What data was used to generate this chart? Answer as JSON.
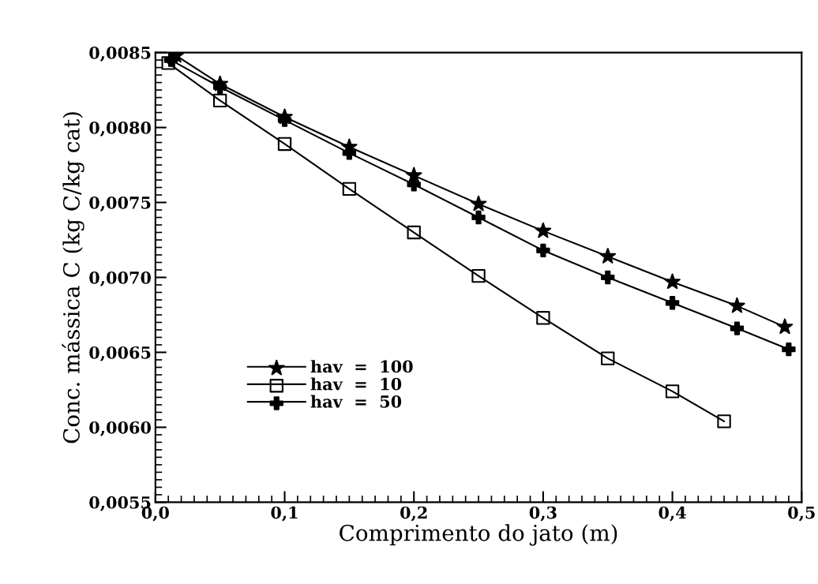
{
  "chart_data": {
    "type": "line",
    "xlabel": "Comprimento do jato (m)",
    "ylabel": "Conc. mássica C (kg C/kg cat)",
    "xlim": [
      0,
      0.5
    ],
    "ylim": [
      0.0055,
      0.0085
    ],
    "xticks": [
      {
        "value": 0,
        "label": "0,0"
      },
      {
        "value": 0.1,
        "label": "0,1"
      },
      {
        "value": 0.2,
        "label": "0,2"
      },
      {
        "value": 0.3,
        "label": "0,3"
      },
      {
        "value": 0.4,
        "label": "0,4"
      },
      {
        "value": 0.5,
        "label": "0,5"
      }
    ],
    "yticks": [
      {
        "value": 0.0055,
        "label": "0,0055"
      },
      {
        "value": 0.006,
        "label": "0,0060"
      },
      {
        "value": 0.0065,
        "label": "0,0065"
      },
      {
        "value": 0.007,
        "label": "0,0070"
      },
      {
        "value": 0.0075,
        "label": "0,0075"
      },
      {
        "value": 0.008,
        "label": "0,0080"
      },
      {
        "value": 0.0085,
        "label": "0,0085"
      }
    ],
    "legend": "bottom left",
    "grid": false,
    "line_style": "solid",
    "series": [
      {
        "name": "hav  =  100",
        "color": "#000000",
        "marker": "star",
        "x": [
          0.016,
          0.05,
          0.1,
          0.15,
          0.2,
          0.25,
          0.3,
          0.35,
          0.4,
          0.45,
          0.487
        ],
        "values": [
          0.00848,
          0.00829,
          0.00807,
          0.00787,
          0.00768,
          0.00749,
          0.00731,
          0.00714,
          0.00697,
          0.00681,
          0.00667
        ]
      },
      {
        "name": "hav  =  10",
        "color": "#000000",
        "marker": "square",
        "x": [
          0.01,
          0.05,
          0.1,
          0.15,
          0.2,
          0.25,
          0.3,
          0.35,
          0.4,
          0.44
        ],
        "values": [
          0.00843,
          0.00818,
          0.00789,
          0.00759,
          0.0073,
          0.00701,
          0.00673,
          0.00646,
          0.00624,
          0.00604
        ]
      },
      {
        "name": "hav  =  50",
        "color": "#000000",
        "marker": "cross",
        "x": [
          0.012,
          0.05,
          0.1,
          0.15,
          0.2,
          0.25,
          0.3,
          0.35,
          0.4,
          0.45,
          0.49
        ],
        "values": [
          0.00845,
          0.00827,
          0.00805,
          0.00783,
          0.00762,
          0.0074,
          0.00718,
          0.007,
          0.00683,
          0.00666,
          0.00652
        ]
      }
    ]
  }
}
